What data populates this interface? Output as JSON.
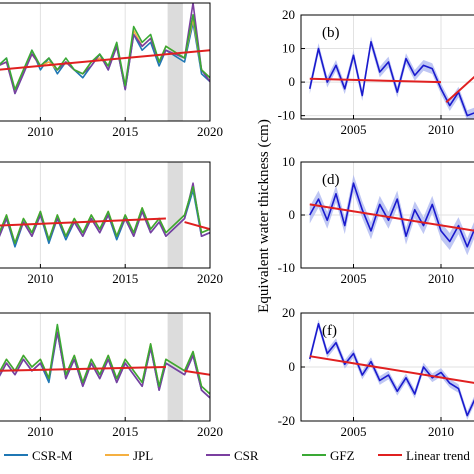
{
  "colors": {
    "csr_m": "#1f77b4",
    "jpl": "#f5b041",
    "csr": "#7b3fa0",
    "gfz": "#3aa935",
    "trend": "#e02020",
    "right_line": "#1a1acd",
    "right_band": "#a9b4f0",
    "gap": "#dcdcdc",
    "grid": "#e2e2e2"
  },
  "ylabel": "Equivalent water thickness (cm)",
  "legend": [
    {
      "label": "CSR-M",
      "color": "#1f77b4"
    },
    {
      "label": "JPL",
      "color": "#f5b041"
    },
    {
      "label": "CSR",
      "color": "#7b3fa0"
    },
    {
      "label": "GFZ",
      "color": "#3aa935"
    },
    {
      "label": "Linear trend",
      "color": "#e02020"
    }
  ],
  "chart_data": [
    {
      "type": "line",
      "panel": "left-1",
      "xlim": [
        2007.5,
        2020
      ],
      "ylim": [
        -10,
        20
      ],
      "xticks": [
        2010,
        2015,
        2020
      ],
      "grid": true,
      "gap": [
        2017.5,
        2018.4
      ],
      "series": [
        {
          "name": "CSR-M",
          "x": [
            2007.5,
            2008,
            2008.5,
            2009,
            2009.5,
            2010,
            2010.5,
            2011,
            2011.5,
            2012,
            2012.5,
            2013,
            2013.5,
            2014,
            2014.5,
            2015,
            2015.5,
            2016,
            2016.5,
            2017,
            2017.4,
            2018.5,
            2019,
            2019.5,
            2020
          ],
          "y": [
            4,
            6,
            -3,
            2,
            8,
            3,
            6,
            2,
            5,
            3,
            1,
            4,
            7,
            3,
            9,
            -2,
            12,
            8,
            10,
            4,
            8,
            5,
            15,
            2,
            0
          ]
        },
        {
          "name": "JPL",
          "x": [
            2007.5,
            2008,
            2008.5,
            2009,
            2009.5,
            2010,
            2010.5,
            2011,
            2011.5,
            2012,
            2012.5,
            2013,
            2013.5,
            2014,
            2014.5,
            2015,
            2015.5,
            2016,
            2016.5,
            2017,
            2017.4,
            2018.5,
            2019,
            2019.5,
            2020
          ],
          "y": [
            4,
            5,
            -2,
            3,
            7,
            4,
            5,
            3,
            5,
            3,
            2,
            5,
            6,
            4,
            9,
            -1,
            13,
            9,
            11,
            5,
            9,
            6,
            16,
            3,
            1
          ]
        },
        {
          "name": "CSR",
          "x": [
            2007.5,
            2008,
            2008.5,
            2009,
            2009.5,
            2010,
            2010.5,
            2011,
            2011.5,
            2012,
            2012.5,
            2013,
            2013.5,
            2014,
            2014.5,
            2015,
            2015.5,
            2016,
            2016.5,
            2017,
            2017.4,
            2018.5,
            2019,
            2019.5,
            2020
          ],
          "y": [
            4,
            5,
            -3,
            2,
            7,
            4,
            6,
            3,
            5,
            3,
            2,
            4,
            7,
            3,
            9,
            -2,
            12,
            9,
            11,
            5,
            8,
            6,
            20,
            3,
            0
          ]
        },
        {
          "name": "GFZ",
          "x": [
            2007.5,
            2008,
            2008.5,
            2009,
            2009.5,
            2010,
            2010.5,
            2011,
            2011.5,
            2012,
            2012.5,
            2013,
            2013.5,
            2014,
            2014.5,
            2015,
            2015.5,
            2016,
            2016.5,
            2017,
            2017.4,
            2018.5,
            2019,
            2019.5,
            2020
          ],
          "y": [
            4,
            6,
            -2,
            3,
            8,
            4,
            6,
            3,
            6,
            3,
            2,
            5,
            7,
            4,
            10,
            -1,
            14,
            10,
            12,
            5,
            9,
            6,
            17,
            3,
            1
          ]
        },
        {
          "name": "Linear trend",
          "x": [
            2007.5,
            2020
          ],
          "y": [
            3,
            8
          ]
        }
      ]
    },
    {
      "type": "line",
      "panel": "left-2",
      "xlim": [
        2007.5,
        2020
      ],
      "ylim": [
        -12,
        18
      ],
      "xticks": [
        2010,
        2015,
        2020
      ],
      "grid": true,
      "gap": [
        2017.5,
        2018.4
      ],
      "series": [
        {
          "name": "CSR-M",
          "x": [
            2007.5,
            2008,
            2008.5,
            2009,
            2009.5,
            2010,
            2010.5,
            2011,
            2011.5,
            2012,
            2012.5,
            2013,
            2013.5,
            2014,
            2014.5,
            2015,
            2015.5,
            2016,
            2016.5,
            2017,
            2017.4,
            2018.5,
            2019,
            2019.5,
            2020
          ],
          "y": [
            -4,
            2,
            -6,
            1,
            -3,
            3,
            -5,
            2,
            -4,
            1,
            -3,
            2,
            -2,
            3,
            -4,
            2,
            -3,
            4,
            -2,
            1,
            -3,
            2,
            10,
            -3,
            -2
          ]
        },
        {
          "name": "JPL",
          "x": [
            2007.5,
            2008,
            2008.5,
            2009,
            2009.5,
            2010,
            2010.5,
            2011,
            2011.5,
            2012,
            2012.5,
            2013,
            2013.5,
            2014,
            2014.5,
            2015,
            2015.5,
            2016,
            2016.5,
            2017,
            2017.4,
            2018.5,
            2019,
            2019.5,
            2020
          ],
          "y": [
            -3,
            3,
            -5,
            2,
            -2,
            4,
            -4,
            3,
            -3,
            2,
            -2,
            3,
            -1,
            4,
            -3,
            3,
            -2,
            5,
            -1,
            2,
            -2,
            3,
            11,
            -2,
            -1
          ]
        },
        {
          "name": "CSR",
          "x": [
            2007.5,
            2008,
            2008.5,
            2009,
            2009.5,
            2010,
            2010.5,
            2011,
            2011.5,
            2012,
            2012.5,
            2013,
            2013.5,
            2014,
            2014.5,
            2015,
            2015.5,
            2016,
            2016.5,
            2017,
            2017.4,
            2018.5,
            2019,
            2019.5,
            2020
          ],
          "y": [
            -4,
            2,
            -5,
            1,
            -3,
            3,
            -4,
            2,
            -3,
            1,
            -3,
            2,
            -2,
            3,
            -3,
            2,
            -3,
            4,
            -2,
            1,
            -3,
            2,
            12,
            -3,
            -2
          ]
        },
        {
          "name": "GFZ",
          "x": [
            2007.5,
            2008,
            2008.5,
            2009,
            2009.5,
            2010,
            2010.5,
            2011,
            2011.5,
            2012,
            2012.5,
            2013,
            2013.5,
            2014,
            2014.5,
            2015,
            2015.5,
            2016,
            2016.5,
            2017,
            2017.4,
            2018.5,
            2019,
            2019.5,
            2020
          ],
          "y": [
            -3,
            3,
            -5,
            2,
            -2,
            4,
            -4,
            3,
            -3,
            2,
            -2,
            3,
            -1,
            4,
            -3,
            3,
            -2,
            5,
            -1,
            2,
            -2,
            3,
            11,
            -2,
            -1
          ]
        },
        {
          "name": "Linear trend",
          "x": [
            2007.5,
            2017.4
          ],
          "y": [
            0,
            2
          ]
        },
        {
          "name": "Linear trend",
          "x": [
            2018.5,
            2020
          ],
          "y": [
            1,
            -1
          ]
        }
      ]
    },
    {
      "type": "line",
      "panel": "left-3",
      "xlim": [
        2007.5,
        2020
      ],
      "ylim": [
        -14,
        14
      ],
      "xticks": [
        2010,
        2015,
        2020
      ],
      "grid": true,
      "gap": [
        2017.5,
        2018.4
      ],
      "series": [
        {
          "name": "CSR-M",
          "x": [
            2007.5,
            2008,
            2008.5,
            2009,
            2009.5,
            2010,
            2010.5,
            2011,
            2011.5,
            2012,
            2012.5,
            2013,
            2013.5,
            2014,
            2014.5,
            2015,
            2015.5,
            2016,
            2016.5,
            2017,
            2017.4,
            2018.5,
            2019,
            2019.5,
            2020
          ],
          "y": [
            -3,
            1,
            -2,
            2,
            -1,
            1,
            -4,
            9,
            -3,
            2,
            -5,
            1,
            -3,
            2,
            -4,
            1,
            -2,
            -5,
            5,
            -6,
            1,
            -2,
            3,
            -6,
            -8
          ]
        },
        {
          "name": "JPL",
          "x": [
            2007.5,
            2008,
            2008.5,
            2009,
            2009.5,
            2010,
            2010.5,
            2011,
            2011.5,
            2012,
            2012.5,
            2013,
            2013.5,
            2014,
            2014.5,
            2015,
            2015.5,
            2016,
            2016.5,
            2017,
            2017.4,
            2018.5,
            2019,
            2019.5,
            2020
          ],
          "y": [
            -2,
            2,
            -1,
            3,
            0,
            2,
            -3,
            10,
            -2,
            3,
            -4,
            2,
            -2,
            3,
            -3,
            2,
            -1,
            -4,
            6,
            -5,
            2,
            -1,
            4,
            -5,
            -7
          ]
        },
        {
          "name": "CSR",
          "x": [
            2007.5,
            2008,
            2008.5,
            2009,
            2009.5,
            2010,
            2010.5,
            2011,
            2011.5,
            2012,
            2012.5,
            2013,
            2013.5,
            2014,
            2014.5,
            2015,
            2015.5,
            2016,
            2016.5,
            2017,
            2017.4,
            2018.5,
            2019,
            2019.5,
            2020
          ],
          "y": [
            -3,
            1,
            -2,
            2,
            -1,
            1,
            -3,
            9,
            -3,
            2,
            -5,
            1,
            -3,
            2,
            -4,
            1,
            -2,
            -5,
            5,
            -6,
            1,
            -2,
            3,
            -6,
            -8
          ]
        },
        {
          "name": "GFZ",
          "x": [
            2007.5,
            2008,
            2008.5,
            2009,
            2009.5,
            2010,
            2010.5,
            2011,
            2011.5,
            2012,
            2012.5,
            2013,
            2013.5,
            2014,
            2014.5,
            2015,
            2015.5,
            2016,
            2016.5,
            2017,
            2017.4,
            2018.5,
            2019,
            2019.5,
            2020
          ],
          "y": [
            -2,
            2,
            -1,
            3,
            0,
            2,
            -3,
            11,
            -2,
            3,
            -4,
            2,
            -2,
            3,
            -3,
            2,
            -1,
            -4,
            6,
            -5,
            2,
            -1,
            4,
            -5,
            -7
          ]
        },
        {
          "name": "Linear trend",
          "x": [
            2007.5,
            2017.4
          ],
          "y": [
            -1,
            0
          ]
        },
        {
          "name": "Linear trend",
          "x": [
            2018.5,
            2020
          ],
          "y": [
            -1,
            -2
          ]
        }
      ]
    },
    {
      "type": "line",
      "panel": "(b)",
      "panel_label": "(b)",
      "xlim": [
        2002,
        2012
      ],
      "ylim": [
        -11,
        20
      ],
      "xticks": [
        2005,
        2010
      ],
      "yticks": [
        -10,
        0,
        10,
        20
      ],
      "grid": true,
      "series": [
        {
          "name": "EWT",
          "x": [
            2002.5,
            2003,
            2003.5,
            2004,
            2004.5,
            2005,
            2005.5,
            2006,
            2006.5,
            2007,
            2007.5,
            2008,
            2008.5,
            2009,
            2009.5,
            2010,
            2010.5,
            2011,
            2011.5,
            2012
          ],
          "y": [
            -2,
            10,
            0,
            5,
            -2,
            8,
            -4,
            12,
            3,
            6,
            -3,
            7,
            2,
            5,
            4,
            -2,
            -7,
            -3,
            -10,
            -9
          ]
        },
        {
          "name": "Linear trend",
          "x": [
            2002.5,
            2010
          ],
          "y": [
            1,
            0
          ]
        },
        {
          "name": "Linear trend",
          "x": [
            2010.3,
            2012
          ],
          "y": [
            -6,
            2
          ]
        }
      ]
    },
    {
      "type": "line",
      "panel": "(d)",
      "panel_label": "(d)",
      "xlim": [
        2002,
        2012
      ],
      "ylim": [
        -10,
        10
      ],
      "xticks": [
        2005,
        2010
      ],
      "yticks": [
        -10,
        0,
        10
      ],
      "grid": true,
      "series": [
        {
          "name": "EWT",
          "x": [
            2002.5,
            2003,
            2003.5,
            2004,
            2004.5,
            2005,
            2005.5,
            2006,
            2006.5,
            2007,
            2007.5,
            2008,
            2008.5,
            2009,
            2009.5,
            2010,
            2010.5,
            2011,
            2011.5,
            2012
          ],
          "y": [
            0,
            3,
            -1,
            4,
            -2,
            6,
            1,
            -3,
            2,
            -1,
            3,
            -4,
            1,
            -2,
            2,
            -3,
            -5,
            -2,
            -6,
            -2
          ]
        },
        {
          "name": "Linear trend",
          "x": [
            2002.5,
            2012
          ],
          "y": [
            2,
            -3
          ]
        }
      ]
    },
    {
      "type": "line",
      "panel": "(f)",
      "panel_label": "(f)",
      "xlim": [
        2002,
        2012
      ],
      "ylim": [
        -20,
        20
      ],
      "xticks": [
        2005,
        2010
      ],
      "yticks": [
        -20,
        0,
        20
      ],
      "grid": true,
      "series": [
        {
          "name": "EWT",
          "x": [
            2002.5,
            2003,
            2003.5,
            2004,
            2004.5,
            2005,
            2005.5,
            2006,
            2006.5,
            2007,
            2007.5,
            2008,
            2008.5,
            2009,
            2009.5,
            2010,
            2010.5,
            2011,
            2011.5,
            2012
          ],
          "y": [
            3,
            16,
            5,
            9,
            1,
            5,
            -3,
            2,
            -5,
            -3,
            -9,
            -4,
            -10,
            0,
            -4,
            -2,
            -6,
            -8,
            -18,
            -11
          ]
        },
        {
          "name": "Linear trend",
          "x": [
            2002.5,
            2012
          ],
          "y": [
            4,
            -6
          ]
        }
      ]
    }
  ]
}
